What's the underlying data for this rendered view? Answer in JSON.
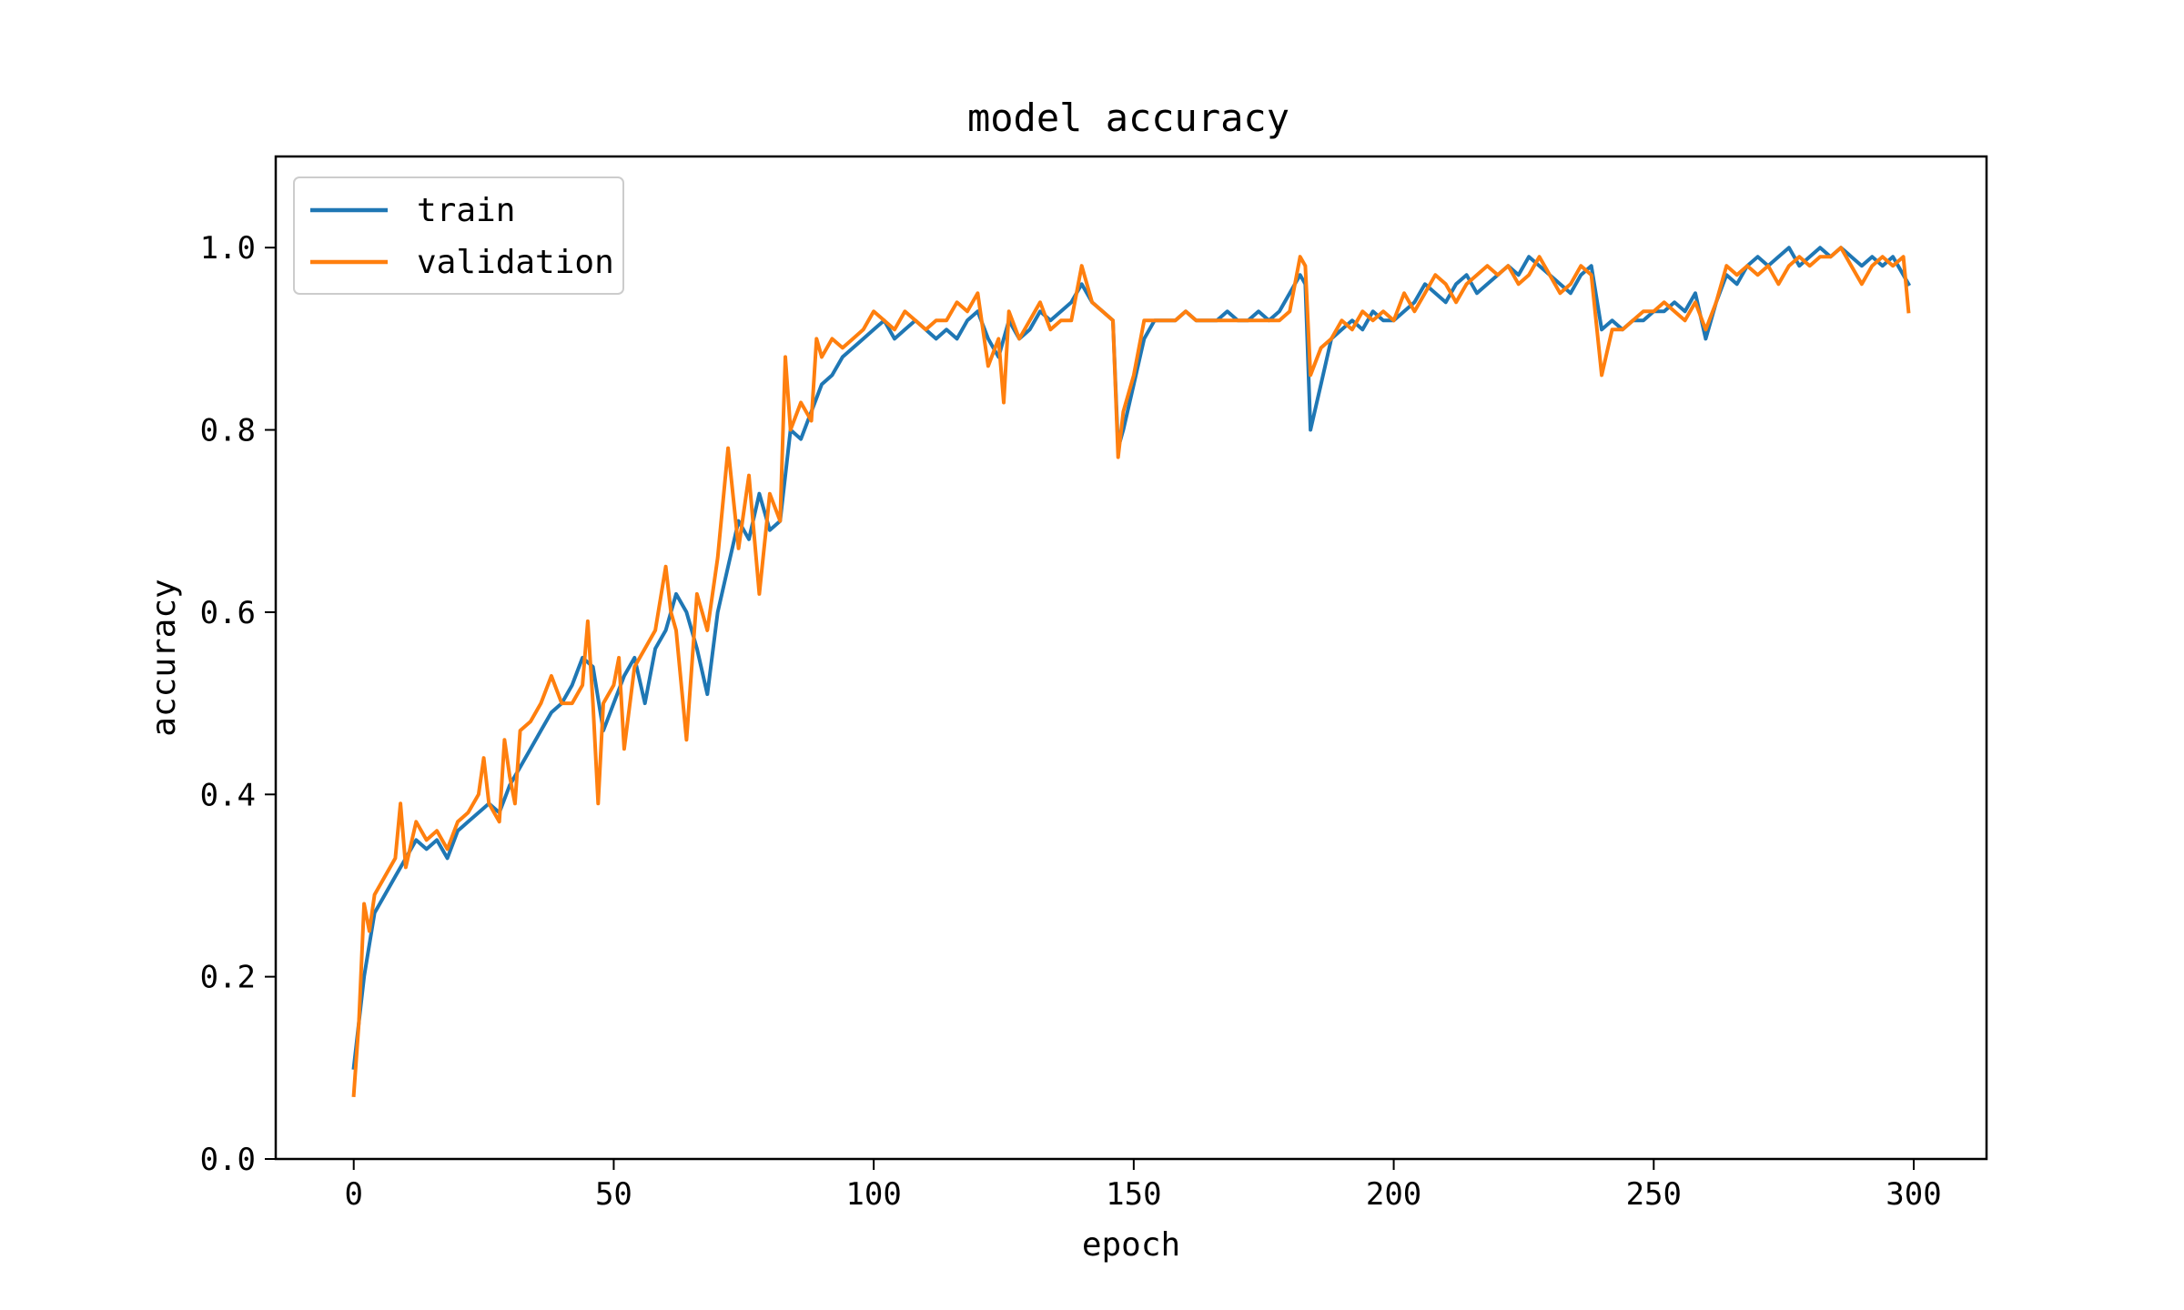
{
  "chart_data": {
    "type": "line",
    "title": "model accuracy",
    "xlabel": "epoch",
    "ylabel": "accuracy",
    "xlim": [
      -15,
      314
    ],
    "ylim": [
      0.0,
      1.1
    ],
    "xticks": [
      0,
      50,
      100,
      150,
      200,
      250,
      300
    ],
    "yticks": [
      0.0,
      0.2,
      0.4,
      0.6,
      0.8,
      1.0
    ],
    "xtick_labels": [
      "0",
      "50",
      "100",
      "150",
      "200",
      "250",
      "300"
    ],
    "ytick_labels": [
      "0.0",
      "0.2",
      "0.4",
      "0.6",
      "0.8",
      "1.0"
    ],
    "grid": false,
    "legend": {
      "placement": "upper left"
    },
    "series": [
      {
        "name": "train",
        "color": "#1f77b4",
        "points": [
          [
            0,
            0.1
          ],
          [
            2,
            0.2
          ],
          [
            4,
            0.27
          ],
          [
            6,
            0.29
          ],
          [
            8,
            0.31
          ],
          [
            10,
            0.33
          ],
          [
            12,
            0.35
          ],
          [
            14,
            0.34
          ],
          [
            16,
            0.35
          ],
          [
            18,
            0.33
          ],
          [
            20,
            0.36
          ],
          [
            22,
            0.37
          ],
          [
            24,
            0.38
          ],
          [
            26,
            0.39
          ],
          [
            28,
            0.38
          ],
          [
            30,
            0.41
          ],
          [
            32,
            0.43
          ],
          [
            34,
            0.45
          ],
          [
            36,
            0.47
          ],
          [
            38,
            0.49
          ],
          [
            40,
            0.5
          ],
          [
            42,
            0.52
          ],
          [
            44,
            0.55
          ],
          [
            46,
            0.54
          ],
          [
            48,
            0.47
          ],
          [
            50,
            0.5
          ],
          [
            52,
            0.53
          ],
          [
            54,
            0.55
          ],
          [
            56,
            0.5
          ],
          [
            58,
            0.56
          ],
          [
            60,
            0.58
          ],
          [
            62,
            0.62
          ],
          [
            64,
            0.6
          ],
          [
            66,
            0.56
          ],
          [
            68,
            0.51
          ],
          [
            70,
            0.6
          ],
          [
            72,
            0.65
          ],
          [
            74,
            0.7
          ],
          [
            76,
            0.68
          ],
          [
            78,
            0.73
          ],
          [
            80,
            0.69
          ],
          [
            82,
            0.7
          ],
          [
            84,
            0.8
          ],
          [
            86,
            0.79
          ],
          [
            88,
            0.82
          ],
          [
            90,
            0.85
          ],
          [
            92,
            0.86
          ],
          [
            94,
            0.88
          ],
          [
            96,
            0.89
          ],
          [
            98,
            0.9
          ],
          [
            100,
            0.91
          ],
          [
            102,
            0.92
          ],
          [
            104,
            0.9
          ],
          [
            106,
            0.91
          ],
          [
            108,
            0.92
          ],
          [
            110,
            0.91
          ],
          [
            112,
            0.9
          ],
          [
            114,
            0.91
          ],
          [
            116,
            0.9
          ],
          [
            118,
            0.92
          ],
          [
            120,
            0.93
          ],
          [
            122,
            0.9
          ],
          [
            124,
            0.88
          ],
          [
            126,
            0.92
          ],
          [
            128,
            0.9
          ],
          [
            130,
            0.91
          ],
          [
            132,
            0.93
          ],
          [
            134,
            0.92
          ],
          [
            136,
            0.93
          ],
          [
            138,
            0.94
          ],
          [
            140,
            0.96
          ],
          [
            142,
            0.94
          ],
          [
            144,
            0.93
          ],
          [
            146,
            0.92
          ],
          [
            147,
            0.78
          ],
          [
            148,
            0.8
          ],
          [
            150,
            0.85
          ],
          [
            152,
            0.9
          ],
          [
            154,
            0.92
          ],
          [
            156,
            0.92
          ],
          [
            158,
            0.92
          ],
          [
            160,
            0.93
          ],
          [
            162,
            0.92
          ],
          [
            164,
            0.92
          ],
          [
            166,
            0.92
          ],
          [
            168,
            0.93
          ],
          [
            170,
            0.92
          ],
          [
            172,
            0.92
          ],
          [
            174,
            0.93
          ],
          [
            176,
            0.92
          ],
          [
            178,
            0.93
          ],
          [
            180,
            0.95
          ],
          [
            182,
            0.97
          ],
          [
            183,
            0.96
          ],
          [
            184,
            0.8
          ],
          [
            186,
            0.85
          ],
          [
            188,
            0.9
          ],
          [
            190,
            0.91
          ],
          [
            192,
            0.92
          ],
          [
            194,
            0.91
          ],
          [
            196,
            0.93
          ],
          [
            198,
            0.92
          ],
          [
            200,
            0.92
          ],
          [
            202,
            0.93
          ],
          [
            204,
            0.94
          ],
          [
            206,
            0.96
          ],
          [
            208,
            0.95
          ],
          [
            210,
            0.94
          ],
          [
            212,
            0.96
          ],
          [
            214,
            0.97
          ],
          [
            216,
            0.95
          ],
          [
            218,
            0.96
          ],
          [
            220,
            0.97
          ],
          [
            222,
            0.98
          ],
          [
            224,
            0.97
          ],
          [
            226,
            0.99
          ],
          [
            228,
            0.98
          ],
          [
            230,
            0.97
          ],
          [
            232,
            0.96
          ],
          [
            234,
            0.95
          ],
          [
            236,
            0.97
          ],
          [
            238,
            0.98
          ],
          [
            240,
            0.91
          ],
          [
            242,
            0.92
          ],
          [
            244,
            0.91
          ],
          [
            246,
            0.92
          ],
          [
            248,
            0.92
          ],
          [
            250,
            0.93
          ],
          [
            252,
            0.93
          ],
          [
            254,
            0.94
          ],
          [
            256,
            0.93
          ],
          [
            258,
            0.95
          ],
          [
            260,
            0.9
          ],
          [
            262,
            0.94
          ],
          [
            264,
            0.97
          ],
          [
            266,
            0.96
          ],
          [
            268,
            0.98
          ],
          [
            270,
            0.99
          ],
          [
            272,
            0.98
          ],
          [
            274,
            0.99
          ],
          [
            276,
            1.0
          ],
          [
            278,
            0.98
          ],
          [
            280,
            0.99
          ],
          [
            282,
            1.0
          ],
          [
            284,
            0.99
          ],
          [
            286,
            1.0
          ],
          [
            288,
            0.99
          ],
          [
            290,
            0.98
          ],
          [
            292,
            0.99
          ],
          [
            294,
            0.98
          ],
          [
            296,
            0.99
          ],
          [
            298,
            0.97
          ],
          [
            299,
            0.96
          ]
        ]
      },
      {
        "name": "validation",
        "color": "#ff7f0e",
        "points": [
          [
            0,
            0.07
          ],
          [
            1,
            0.15
          ],
          [
            2,
            0.28
          ],
          [
            3,
            0.25
          ],
          [
            4,
            0.29
          ],
          [
            6,
            0.31
          ],
          [
            8,
            0.33
          ],
          [
            9,
            0.39
          ],
          [
            10,
            0.32
          ],
          [
            12,
            0.37
          ],
          [
            14,
            0.35
          ],
          [
            16,
            0.36
          ],
          [
            18,
            0.34
          ],
          [
            20,
            0.37
          ],
          [
            22,
            0.38
          ],
          [
            24,
            0.4
          ],
          [
            25,
            0.44
          ],
          [
            26,
            0.39
          ],
          [
            28,
            0.37
          ],
          [
            29,
            0.46
          ],
          [
            30,
            0.42
          ],
          [
            31,
            0.39
          ],
          [
            32,
            0.47
          ],
          [
            34,
            0.48
          ],
          [
            36,
            0.5
          ],
          [
            38,
            0.53
          ],
          [
            40,
            0.5
          ],
          [
            42,
            0.5
          ],
          [
            44,
            0.52
          ],
          [
            45,
            0.59
          ],
          [
            46,
            0.5
          ],
          [
            47,
            0.39
          ],
          [
            48,
            0.5
          ],
          [
            50,
            0.52
          ],
          [
            51,
            0.55
          ],
          [
            52,
            0.45
          ],
          [
            54,
            0.54
          ],
          [
            56,
            0.56
          ],
          [
            58,
            0.58
          ],
          [
            60,
            0.65
          ],
          [
            61,
            0.6
          ],
          [
            62,
            0.58
          ],
          [
            64,
            0.46
          ],
          [
            66,
            0.62
          ],
          [
            68,
            0.58
          ],
          [
            70,
            0.66
          ],
          [
            72,
            0.78
          ],
          [
            74,
            0.67
          ],
          [
            76,
            0.75
          ],
          [
            78,
            0.62
          ],
          [
            80,
            0.73
          ],
          [
            82,
            0.7
          ],
          [
            83,
            0.88
          ],
          [
            84,
            0.8
          ],
          [
            86,
            0.83
          ],
          [
            88,
            0.81
          ],
          [
            89,
            0.9
          ],
          [
            90,
            0.88
          ],
          [
            92,
            0.9
          ],
          [
            94,
            0.89
          ],
          [
            96,
            0.9
          ],
          [
            98,
            0.91
          ],
          [
            100,
            0.93
          ],
          [
            102,
            0.92
          ],
          [
            104,
            0.91
          ],
          [
            106,
            0.93
          ],
          [
            108,
            0.92
          ],
          [
            110,
            0.91
          ],
          [
            112,
            0.92
          ],
          [
            114,
            0.92
          ],
          [
            116,
            0.94
          ],
          [
            118,
            0.93
          ],
          [
            120,
            0.95
          ],
          [
            122,
            0.87
          ],
          [
            124,
            0.9
          ],
          [
            125,
            0.83
          ],
          [
            126,
            0.93
          ],
          [
            128,
            0.9
          ],
          [
            130,
            0.92
          ],
          [
            132,
            0.94
          ],
          [
            134,
            0.91
          ],
          [
            136,
            0.92
          ],
          [
            138,
            0.92
          ],
          [
            140,
            0.98
          ],
          [
            142,
            0.94
          ],
          [
            144,
            0.93
          ],
          [
            146,
            0.92
          ],
          [
            147,
            0.77
          ],
          [
            148,
            0.82
          ],
          [
            150,
            0.86
          ],
          [
            152,
            0.92
          ],
          [
            154,
            0.92
          ],
          [
            156,
            0.92
          ],
          [
            158,
            0.92
          ],
          [
            160,
            0.93
          ],
          [
            162,
            0.92
          ],
          [
            164,
            0.92
          ],
          [
            166,
            0.92
          ],
          [
            168,
            0.92
          ],
          [
            170,
            0.92
          ],
          [
            172,
            0.92
          ],
          [
            174,
            0.92
          ],
          [
            176,
            0.92
          ],
          [
            178,
            0.92
          ],
          [
            180,
            0.93
          ],
          [
            182,
            0.99
          ],
          [
            183,
            0.98
          ],
          [
            184,
            0.86
          ],
          [
            186,
            0.89
          ],
          [
            188,
            0.9
          ],
          [
            190,
            0.92
          ],
          [
            192,
            0.91
          ],
          [
            194,
            0.93
          ],
          [
            196,
            0.92
          ],
          [
            198,
            0.93
          ],
          [
            200,
            0.92
          ],
          [
            202,
            0.95
          ],
          [
            204,
            0.93
          ],
          [
            206,
            0.95
          ],
          [
            208,
            0.97
          ],
          [
            210,
            0.96
          ],
          [
            212,
            0.94
          ],
          [
            214,
            0.96
          ],
          [
            216,
            0.97
          ],
          [
            218,
            0.98
          ],
          [
            220,
            0.97
          ],
          [
            222,
            0.98
          ],
          [
            224,
            0.96
          ],
          [
            226,
            0.97
          ],
          [
            228,
            0.99
          ],
          [
            230,
            0.97
          ],
          [
            232,
            0.95
          ],
          [
            234,
            0.96
          ],
          [
            236,
            0.98
          ],
          [
            238,
            0.97
          ],
          [
            240,
            0.86
          ],
          [
            242,
            0.91
          ],
          [
            244,
            0.91
          ],
          [
            246,
            0.92
          ],
          [
            248,
            0.93
          ],
          [
            250,
            0.93
          ],
          [
            252,
            0.94
          ],
          [
            254,
            0.93
          ],
          [
            256,
            0.92
          ],
          [
            258,
            0.94
          ],
          [
            260,
            0.91
          ],
          [
            262,
            0.94
          ],
          [
            264,
            0.98
          ],
          [
            266,
            0.97
          ],
          [
            268,
            0.98
          ],
          [
            270,
            0.97
          ],
          [
            272,
            0.98
          ],
          [
            274,
            0.96
          ],
          [
            276,
            0.98
          ],
          [
            278,
            0.99
          ],
          [
            280,
            0.98
          ],
          [
            282,
            0.99
          ],
          [
            284,
            0.99
          ],
          [
            286,
            1.0
          ],
          [
            288,
            0.98
          ],
          [
            290,
            0.96
          ],
          [
            292,
            0.98
          ],
          [
            294,
            0.99
          ],
          [
            296,
            0.98
          ],
          [
            298,
            0.99
          ],
          [
            299,
            0.93
          ]
        ]
      }
    ]
  }
}
